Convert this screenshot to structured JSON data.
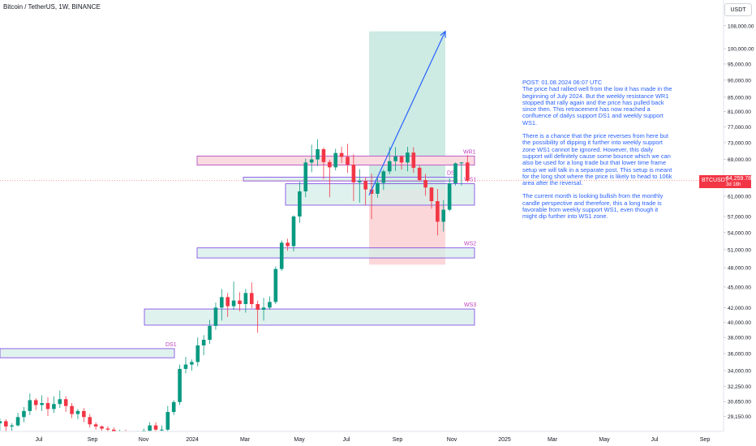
{
  "header": {
    "symbol_title": "Bitcoin / TetherUS, 1W, BINANCE",
    "currency": "USDT"
  },
  "price_tag": {
    "symbol": "BTCUSDT",
    "price": "64,259.78",
    "countdown": "3d 18h",
    "color": "#f23645"
  },
  "note": {
    "color": "#2962ff",
    "paragraphs": [
      "POST: 01.08.2024 06:07 UTC\nThe price had rallied well from the low it has made in the beginning of July 2024. But the weekly resistance WR1 stopped that rally again and the price has pulled back since then. This retracement has now reached a confluence of dailys support DS1 and weekly support WS1.",
      "There is a chance that the price reverses from here but the possibility of dipping it further into weekly support zone WS1 cannot be ignored. However, this daily support will definitely cause some bounce which we can also be used for a long trade but that lower time frame setup we will talk in a separate post. This setup is meant for the long shot where the price is likely to head to 106k area after the reversal.",
      "The current month is looking bullish from the monthly candle perspective and therefore, this a long trade is favorable from weekly support WS1, even though it might dip further into WS1 zone."
    ]
  },
  "colors": {
    "up": "#089981",
    "down": "#f23645",
    "resistance_fill": "#fadbe0",
    "resistance_border": "#b040c0",
    "support_fill": "#d6eee8",
    "support_border": "#7b3fe4",
    "target_zone": "#cdeae3",
    "stop_zone": "#fbd7d9",
    "projection": "#2962ff",
    "current_price_line": "#f23645",
    "zone_label": "#c040c0"
  },
  "chart_data": {
    "type": "candlestick",
    "title": "Bitcoin / TetherUS, 1W, BINANCE",
    "x_axis": {
      "ticks": [
        "Jul",
        "Sep",
        "Nov",
        "2024",
        "Mar",
        "May",
        "Jul",
        "Sep",
        "Nov",
        "2025",
        "Mar",
        "May",
        "Jul",
        "Sep"
      ]
    },
    "y_axis": {
      "scale": "log",
      "range": [
        28500,
        110000
      ],
      "ticks": [
        "108,000.00",
        "100,000.00",
        "95,000.00",
        "90,000.00",
        "85,000.00",
        "81,000.00",
        "77,000.00",
        "73,000.00",
        "69,000.00",
        "65,000.00",
        "61,000.00",
        "57,000.00",
        "54,000.00",
        "51,000.00",
        "48,000.00",
        "45,000.00",
        "42,000.00",
        "40,000.00",
        "38,000.00",
        "36,000.00",
        "34,000.00",
        "32,250.00",
        "30,650.00",
        "29,150.00"
      ]
    },
    "candles": [
      {
        "x": 0,
        "o": 28300,
        "h": 28700,
        "l": 27900,
        "c": 28500
      },
      {
        "x": 1,
        "o": 28500,
        "h": 29000,
        "l": 27800,
        "c": 28700
      },
      {
        "x": 2,
        "o": 28700,
        "h": 28900,
        "l": 27700,
        "c": 28200
      },
      {
        "x": 3,
        "o": 28200,
        "h": 28500,
        "l": 27800,
        "c": 28300
      },
      {
        "x": 4,
        "o": 28300,
        "h": 29500,
        "l": 28200,
        "c": 29100
      },
      {
        "x": 5,
        "o": 29100,
        "h": 30100,
        "l": 28600,
        "c": 29700
      },
      {
        "x": 6,
        "o": 29700,
        "h": 31500,
        "l": 29300,
        "c": 30800
      },
      {
        "x": 7,
        "o": 30800,
        "h": 31000,
        "l": 29800,
        "c": 30300
      },
      {
        "x": 8,
        "o": 30300,
        "h": 31300,
        "l": 29700,
        "c": 30500
      },
      {
        "x": 9,
        "o": 30500,
        "h": 31100,
        "l": 29200,
        "c": 29900
      },
      {
        "x": 10,
        "o": 29900,
        "h": 31200,
        "l": 29500,
        "c": 30400
      },
      {
        "x": 11,
        "o": 30400,
        "h": 31800,
        "l": 30000,
        "c": 30900
      },
      {
        "x": 12,
        "o": 30900,
        "h": 31200,
        "l": 29600,
        "c": 30200
      },
      {
        "x": 13,
        "o": 30200,
        "h": 30500,
        "l": 29000,
        "c": 29400
      },
      {
        "x": 14,
        "o": 29400,
        "h": 29900,
        "l": 28900,
        "c": 29700
      },
      {
        "x": 15,
        "o": 29700,
        "h": 30000,
        "l": 28600,
        "c": 29100
      },
      {
        "x": 16,
        "o": 29100,
        "h": 29400,
        "l": 28100,
        "c": 28400
      },
      {
        "x": 17,
        "o": 28400,
        "h": 28600,
        "l": 27900,
        "c": 28200
      },
      {
        "x": 18,
        "o": 28200,
        "h": 28300,
        "l": 27800,
        "c": 28000
      },
      {
        "x": 19,
        "o": 28000,
        "h": 28200,
        "l": 27500,
        "c": 27900
      },
      {
        "x": 20,
        "o": 27900,
        "h": 28100,
        "l": 27200,
        "c": 27600
      },
      {
        "x": 21,
        "o": 27600,
        "h": 27900,
        "l": 27100,
        "c": 27700
      },
      {
        "x": 22,
        "o": 27700,
        "h": 27900,
        "l": 26800,
        "c": 27300
      },
      {
        "x": 23,
        "o": 27300,
        "h": 27600,
        "l": 26700,
        "c": 27000
      },
      {
        "x": 24,
        "o": 27000,
        "h": 27800,
        "l": 26600,
        "c": 27400
      },
      {
        "x": 25,
        "o": 27400,
        "h": 28000,
        "l": 26900,
        "c": 27800
      },
      {
        "x": 26,
        "o": 27800,
        "h": 28600,
        "l": 27500,
        "c": 28300
      },
      {
        "x": 27,
        "o": 28300,
        "h": 28600,
        "l": 27600,
        "c": 27900
      },
      {
        "x": 28,
        "o": 27900,
        "h": 28300,
        "l": 27500,
        "c": 27900
      },
      {
        "x": 29,
        "o": 27900,
        "h": 30200,
        "l": 27700,
        "c": 29600
      },
      {
        "x": 30,
        "o": 29600,
        "h": 30800,
        "l": 29300,
        "c": 30600
      },
      {
        "x": 31,
        "o": 30600,
        "h": 34700,
        "l": 30300,
        "c": 34200
      },
      {
        "x": 32,
        "o": 34200,
        "h": 35600,
        "l": 33700,
        "c": 34700
      },
      {
        "x": 33,
        "o": 34700,
        "h": 35300,
        "l": 34000,
        "c": 35000
      },
      {
        "x": 34,
        "o": 35000,
        "h": 38000,
        "l": 34500,
        "c": 37000
      },
      {
        "x": 35,
        "o": 37000,
        "h": 38300,
        "l": 35800,
        "c": 37700
      },
      {
        "x": 36,
        "o": 37700,
        "h": 40300,
        "l": 37200,
        "c": 39500
      },
      {
        "x": 37,
        "o": 39500,
        "h": 42700,
        "l": 39000,
        "c": 42000
      },
      {
        "x": 38,
        "o": 42000,
        "h": 44700,
        "l": 40200,
        "c": 43500
      },
      {
        "x": 39,
        "o": 43500,
        "h": 44100,
        "l": 40700,
        "c": 42200
      },
      {
        "x": 40,
        "o": 42200,
        "h": 45800,
        "l": 41700,
        "c": 43000
      },
      {
        "x": 41,
        "o": 43000,
        "h": 44200,
        "l": 41500,
        "c": 42500
      },
      {
        "x": 42,
        "o": 42500,
        "h": 44700,
        "l": 41300,
        "c": 44100
      },
      {
        "x": 43,
        "o": 44100,
        "h": 45700,
        "l": 41900,
        "c": 42500
      },
      {
        "x": 44,
        "o": 42500,
        "h": 43000,
        "l": 38600,
        "c": 41700
      },
      {
        "x": 45,
        "o": 41700,
        "h": 43400,
        "l": 40200,
        "c": 42000
      },
      {
        "x": 46,
        "o": 42000,
        "h": 43600,
        "l": 41700,
        "c": 42800
      },
      {
        "x": 47,
        "o": 42800,
        "h": 48200,
        "l": 42500,
        "c": 47800
      },
      {
        "x": 48,
        "o": 47800,
        "h": 52600,
        "l": 47500,
        "c": 52200
      },
      {
        "x": 49,
        "o": 52200,
        "h": 52900,
        "l": 50800,
        "c": 51600
      },
      {
        "x": 50,
        "o": 51600,
        "h": 57200,
        "l": 50700,
        "c": 57000
      },
      {
        "x": 51,
        "o": 57000,
        "h": 64000,
        "l": 55800,
        "c": 62000
      },
      {
        "x": 52,
        "o": 62000,
        "h": 69200,
        "l": 60800,
        "c": 68300
      },
      {
        "x": 53,
        "o": 68300,
        "h": 72500,
        "l": 66100,
        "c": 69000
      },
      {
        "x": 54,
        "o": 69000,
        "h": 73800,
        "l": 67500,
        "c": 71400
      },
      {
        "x": 55,
        "o": 71400,
        "h": 71800,
        "l": 64600,
        "c": 68400
      },
      {
        "x": 56,
        "o": 68400,
        "h": 68900,
        "l": 60800,
        "c": 67200
      },
      {
        "x": 57,
        "o": 67200,
        "h": 71500,
        "l": 66500,
        "c": 70500
      },
      {
        "x": 58,
        "o": 70500,
        "h": 72000,
        "l": 68200,
        "c": 69600
      },
      {
        "x": 59,
        "o": 69600,
        "h": 72700,
        "l": 66000,
        "c": 67800
      },
      {
        "x": 60,
        "o": 67800,
        "h": 70200,
        "l": 60000,
        "c": 63900
      },
      {
        "x": 61,
        "o": 63900,
        "h": 66800,
        "l": 59700,
        "c": 64200
      },
      {
        "x": 62,
        "o": 64200,
        "h": 65000,
        "l": 59200,
        "c": 62400
      },
      {
        "x": 63,
        "o": 62400,
        "h": 65800,
        "l": 56500,
        "c": 61500
      },
      {
        "x": 64,
        "o": 61500,
        "h": 64900,
        "l": 60700,
        "c": 63800
      },
      {
        "x": 65,
        "o": 63800,
        "h": 66700,
        "l": 62300,
        "c": 66300
      },
      {
        "x": 66,
        "o": 66300,
        "h": 71900,
        "l": 65700,
        "c": 68600
      },
      {
        "x": 67,
        "o": 68600,
        "h": 71900,
        "l": 66400,
        "c": 69700
      },
      {
        "x": 68,
        "o": 69700,
        "h": 70000,
        "l": 66700,
        "c": 68300
      },
      {
        "x": 69,
        "o": 68300,
        "h": 72000,
        "l": 66300,
        "c": 70600
      },
      {
        "x": 70,
        "o": 70600,
        "h": 71900,
        "l": 66000,
        "c": 67100
      },
      {
        "x": 71,
        "o": 67100,
        "h": 67600,
        "l": 64100,
        "c": 64400
      },
      {
        "x": 72,
        "o": 64400,
        "h": 65700,
        "l": 61100,
        "c": 62800
      },
      {
        "x": 73,
        "o": 62800,
        "h": 62900,
        "l": 58500,
        "c": 60000
      },
      {
        "x": 74,
        "o": 60000,
        "h": 62500,
        "l": 53500,
        "c": 56000
      },
      {
        "x": 75,
        "o": 56000,
        "h": 60200,
        "l": 54200,
        "c": 58300
      },
      {
        "x": 76,
        "o": 58300,
        "h": 64800,
        "l": 58000,
        "c": 63700
      },
      {
        "x": 77,
        "o": 63700,
        "h": 68300,
        "l": 63200,
        "c": 68100
      },
      {
        "x": 78,
        "o": 68100,
        "h": 68400,
        "l": 63200,
        "c": 68300
      },
      {
        "x": 79,
        "o": 68300,
        "h": 70000,
        "l": 63900,
        "c": 64259.78
      }
    ],
    "zones": [
      {
        "label": "WR1",
        "kind": "resistance",
        "low": 67700,
        "high": 69800
      },
      {
        "label": "DS1",
        "kind": "support",
        "low": 64200,
        "high": 65000
      },
      {
        "label": "WS1",
        "kind": "support",
        "low": 59200,
        "high": 63600
      },
      {
        "label": "WS2",
        "kind": "support",
        "low": 49600,
        "high": 51300
      },
      {
        "label": "WS3",
        "kind": "support",
        "low": 39600,
        "high": 41800
      },
      {
        "label": "DS1",
        "kind": "support",
        "low": 35500,
        "high": 36600
      }
    ],
    "position": {
      "type": "long",
      "entry": 62500,
      "target": 106000,
      "stop": 48500
    },
    "current_price": 64259.78,
    "legend": "none",
    "grid": false
  }
}
